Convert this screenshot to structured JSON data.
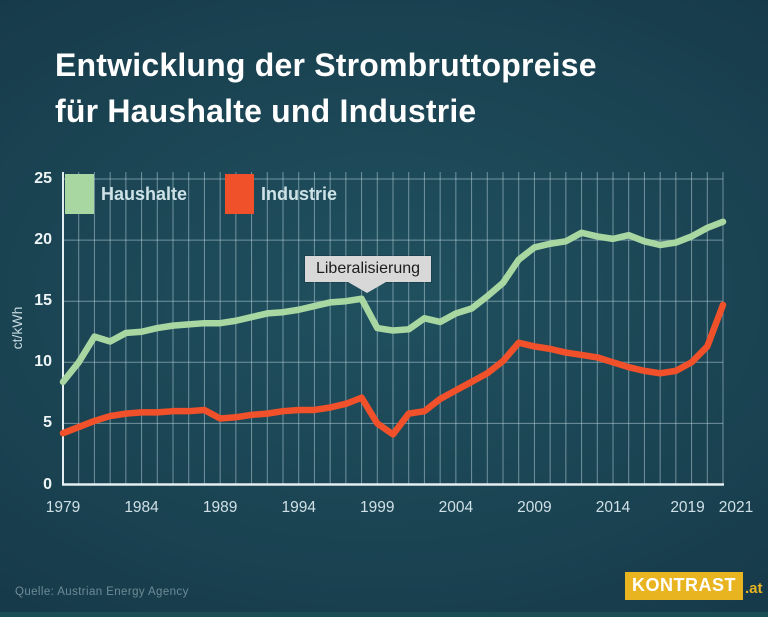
{
  "title": {
    "line1": "Entwicklung der Strombruttopreise",
    "line2": "für Haushalte und Industrie"
  },
  "legend": [
    {
      "label": "Haushalte",
      "color": "#a9d7a2"
    },
    {
      "label": "Industrie",
      "color": "#f0512a"
    }
  ],
  "axis": {
    "y_unit": "ct/kWh"
  },
  "footer": {
    "source": "Quelle: Austrian Energy Agency",
    "brand": "KONTRAST",
    "brand_suffix": ".at"
  },
  "colors": {
    "haushalte": "#a9d7a2",
    "industrie": "#f0512a",
    "grid": "rgba(198,221,229,0.5)",
    "axis": "rgba(236,246,248,0.95)",
    "brand_gold": "#e8b41f"
  },
  "chart_data": {
    "type": "line",
    "title": "Entwicklung der Strombruttopreise für Haushalte und Industrie",
    "xlabel": "",
    "ylabel": "ct/kWh",
    "ylim": [
      0,
      25
    ],
    "y_ticks": [
      0,
      5,
      10,
      15,
      20,
      25
    ],
    "x_tick_labels": [
      "1979",
      "1984",
      "1989",
      "1994",
      "1999",
      "2004",
      "2009",
      "2014",
      "2019",
      "2021"
    ],
    "grid": true,
    "legend_position": "top-left",
    "annotation": {
      "text": "Liberalisierung",
      "x_year": 1998,
      "points_to_value": 15.2
    },
    "x": [
      1979,
      1980,
      1981,
      1982,
      1983,
      1984,
      1985,
      1986,
      1987,
      1988,
      1989,
      1990,
      1991,
      1992,
      1993,
      1994,
      1995,
      1996,
      1997,
      1998,
      1999,
      2000,
      2001,
      2002,
      2003,
      2004,
      2005,
      2006,
      2007,
      2008,
      2009,
      2010,
      2011,
      2012,
      2013,
      2014,
      2015,
      2016,
      2017,
      2018,
      2019,
      2020,
      2021
    ],
    "series": [
      {
        "name": "Haushalte",
        "color": "#a9d7a2",
        "values": [
          8.4,
          10.0,
          12.1,
          11.7,
          12.4,
          12.5,
          12.8,
          13.0,
          13.1,
          13.2,
          13.2,
          13.4,
          13.7,
          14.0,
          14.1,
          14.3,
          14.6,
          14.9,
          15.0,
          15.2,
          12.8,
          12.6,
          12.7,
          13.6,
          13.3,
          14.0,
          14.4,
          15.4,
          16.5,
          18.4,
          19.4,
          19.7,
          19.9,
          20.6,
          20.3,
          20.1,
          20.4,
          19.9,
          19.6,
          19.8,
          20.3,
          21.0,
          21.5
        ]
      },
      {
        "name": "Industrie",
        "color": "#f0512a",
        "values": [
          4.2,
          4.7,
          5.2,
          5.6,
          5.8,
          5.9,
          5.9,
          6.0,
          6.0,
          6.1,
          5.4,
          5.5,
          5.7,
          5.8,
          6.0,
          6.1,
          6.1,
          6.3,
          6.6,
          7.1,
          5.0,
          4.1,
          5.8,
          6.0,
          7.0,
          7.7,
          8.4,
          9.1,
          10.1,
          11.6,
          11.3,
          11.1,
          10.8,
          10.6,
          10.4,
          10.0,
          9.6,
          9.3,
          9.1,
          9.3,
          10.0,
          11.3,
          14.7
        ]
      }
    ]
  }
}
